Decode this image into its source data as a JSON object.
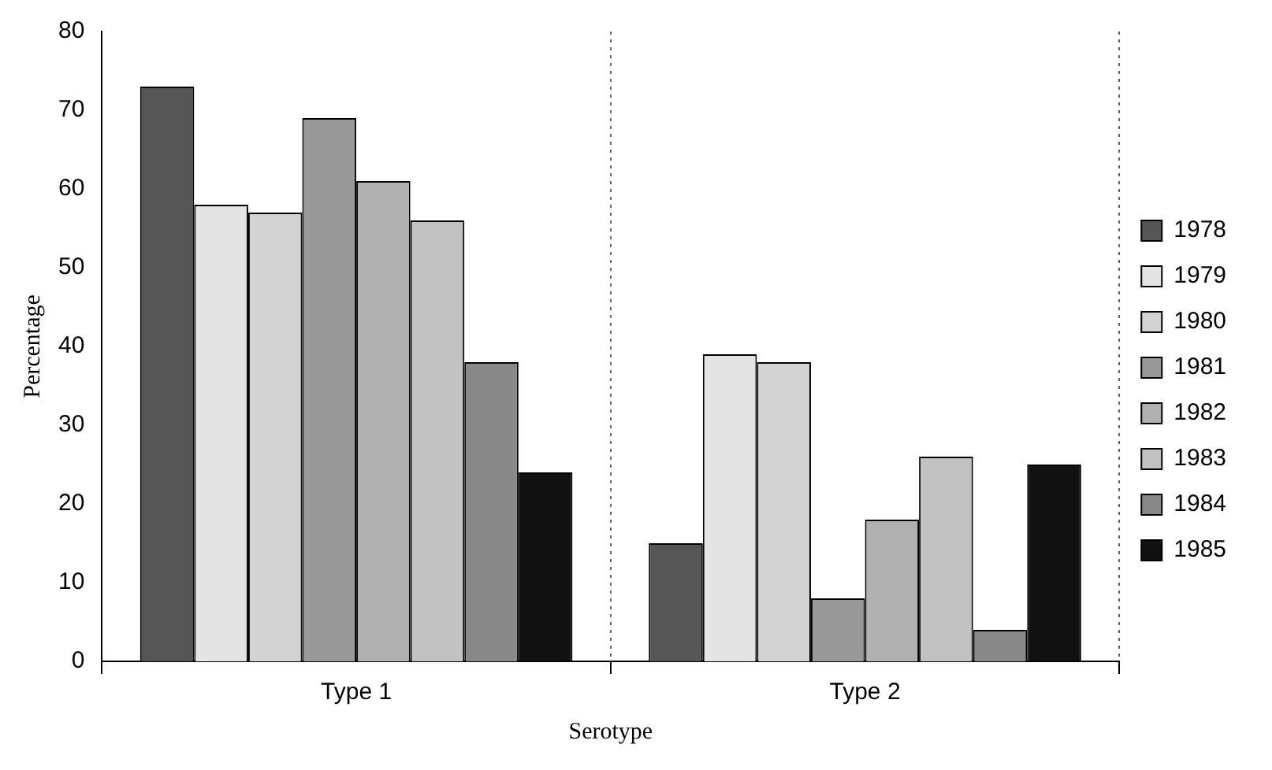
{
  "chart_data": {
    "type": "bar",
    "xlabel": "Serotype",
    "ylabel": "Percentage",
    "categories": [
      "Type 1",
      "Type 2"
    ],
    "series": [
      {
        "name": "1978",
        "color": "#555555",
        "values": [
          73,
          15
        ]
      },
      {
        "name": "1979",
        "color": "#e4e4e4",
        "values": [
          58,
          39
        ]
      },
      {
        "name": "1980",
        "color": "#d2d2d2",
        "values": [
          57,
          38
        ]
      },
      {
        "name": "1981",
        "color": "#999999",
        "values": [
          69,
          8
        ]
      },
      {
        "name": "1982",
        "color": "#b0b0b0",
        "values": [
          61,
          18
        ]
      },
      {
        "name": "1983",
        "color": "#c2c2c2",
        "values": [
          56,
          26
        ]
      },
      {
        "name": "1984",
        "color": "#888888",
        "values": [
          38,
          4
        ]
      },
      {
        "name": "1985",
        "color": "#111111",
        "values": [
          24,
          25
        ]
      }
    ],
    "ylim": [
      0,
      80
    ],
    "yticks": [
      0,
      10,
      20,
      30,
      40,
      50,
      60,
      70,
      80
    ],
    "grid": "x",
    "legend": "right"
  }
}
